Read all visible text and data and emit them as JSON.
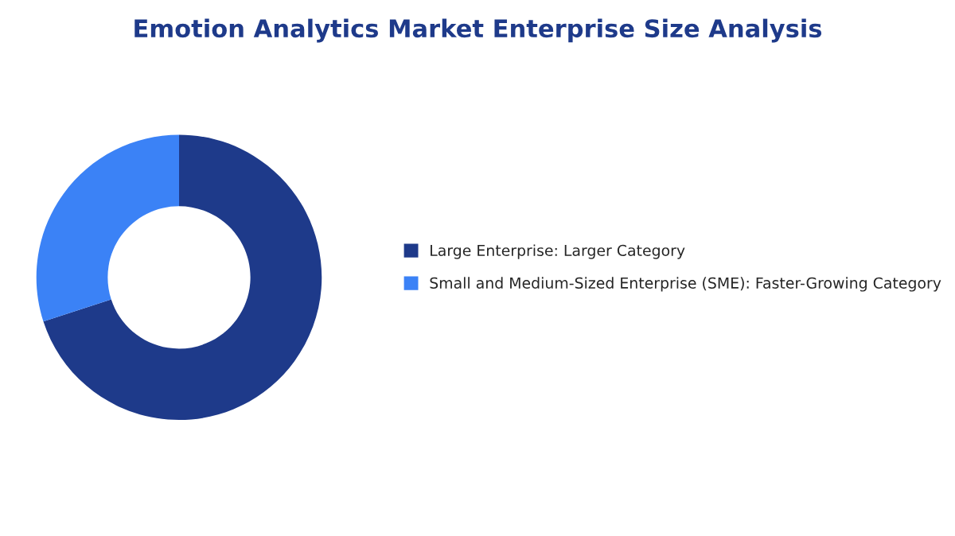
{
  "chart_data": {
    "type": "donut",
    "title": "Emotion Analytics Market Enterprise Size Analysis",
    "categories": [
      "Large Enterprise: Larger Category",
      "Small and Medium-Sized Enterprise (SME): Faster-Growing Category"
    ],
    "values": [
      70,
      30
    ],
    "colors": [
      "#1e3a8a",
      "#3b82f6"
    ],
    "legend": "right"
  }
}
